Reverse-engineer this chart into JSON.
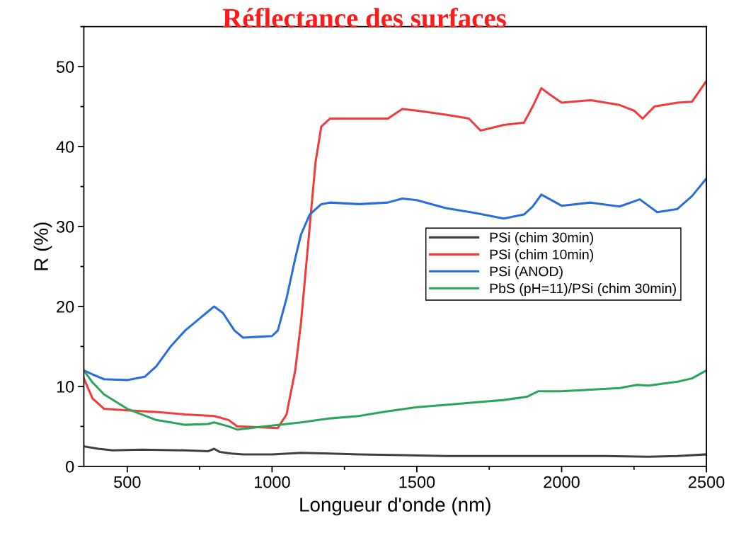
{
  "chart_data": {
    "type": "line",
    "title": "Réflectance des surfaces",
    "xlabel": "Longueur d'onde (nm)",
    "ylabel": "R (%)",
    "xlim": [
      350,
      2500
    ],
    "xticks": [
      500,
      1000,
      1500,
      2000,
      2500
    ],
    "ylim": [
      0,
      55
    ],
    "yticks": [
      0,
      10,
      20,
      30,
      40,
      50
    ],
    "grid": false,
    "legend": "right",
    "line_style": "solid",
    "marker": "none",
    "series": [
      {
        "name": "PSi (chim 30min)",
        "color": "#404040",
        "x": [
          350,
          400,
          450,
          550,
          700,
          780,
          800,
          820,
          860,
          900,
          1000,
          1100,
          1200,
          1300,
          1450,
          1600,
          1800,
          2000,
          2150,
          2300,
          2400,
          2500
        ],
        "values": [
          2.5,
          2.2,
          2.0,
          2.1,
          2.0,
          1.9,
          2.2,
          1.8,
          1.6,
          1.5,
          1.5,
          1.7,
          1.6,
          1.5,
          1.4,
          1.3,
          1.3,
          1.3,
          1.3,
          1.2,
          1.3,
          1.5
        ]
      },
      {
        "name": "PSi (chim 10min)",
        "color": "#f03c3c",
        "x": [
          350,
          380,
          420,
          500,
          600,
          700,
          800,
          850,
          880,
          950,
          1020,
          1050,
          1080,
          1100,
          1130,
          1150,
          1170,
          1200,
          1300,
          1400,
          1450,
          1500,
          1600,
          1680,
          1720,
          1800,
          1870,
          1900,
          1930,
          1960,
          2000,
          2100,
          2200,
          2250,
          2280,
          2320,
          2400,
          2450,
          2500
        ],
        "values": [
          11.0,
          8.5,
          7.2,
          7.0,
          6.8,
          6.5,
          6.3,
          5.8,
          5.0,
          4.9,
          4.8,
          6.5,
          12.0,
          18.0,
          30.0,
          38.0,
          42.5,
          43.5,
          43.5,
          43.5,
          44.7,
          44.5,
          44.0,
          43.5,
          42.0,
          42.7,
          43.0,
          45.0,
          47.3,
          46.5,
          45.5,
          45.8,
          45.2,
          44.5,
          43.5,
          45.0,
          45.5,
          45.6,
          48.2
        ]
      },
      {
        "name": "PSi (ANOD)",
        "color": "#2a6edc",
        "x": [
          350,
          380,
          420,
          500,
          560,
          600,
          650,
          700,
          750,
          800,
          830,
          870,
          900,
          950,
          1000,
          1020,
          1050,
          1080,
          1100,
          1130,
          1170,
          1200,
          1300,
          1400,
          1450,
          1500,
          1600,
          1700,
          1800,
          1870,
          1900,
          1930,
          1970,
          2000,
          2100,
          2200,
          2270,
          2330,
          2400,
          2450,
          2500
        ],
        "values": [
          12.0,
          11.5,
          10.9,
          10.8,
          11.2,
          12.5,
          15.0,
          17.0,
          18.5,
          20.0,
          19.2,
          17.0,
          16.1,
          16.2,
          16.3,
          17.0,
          21.0,
          26.0,
          29.0,
          31.5,
          32.8,
          33.0,
          32.8,
          33.0,
          33.5,
          33.3,
          32.3,
          31.7,
          31.0,
          31.5,
          32.5,
          34.0,
          33.2,
          32.6,
          33.0,
          32.5,
          33.4,
          31.8,
          32.2,
          33.8,
          36.0
        ]
      },
      {
        "name": "PbS (pH=11)/PSi (chim 30min)",
        "color": "#2aa55a",
        "x": [
          350,
          380,
          420,
          500,
          600,
          700,
          780,
          800,
          850,
          880,
          950,
          1000,
          1100,
          1200,
          1300,
          1400,
          1500,
          1600,
          1700,
          1800,
          1880,
          1920,
          2000,
          2100,
          2200,
          2260,
          2300,
          2400,
          2450,
          2500
        ],
        "values": [
          12.0,
          10.5,
          9.0,
          7.2,
          5.8,
          5.2,
          5.3,
          5.5,
          5.0,
          4.6,
          4.9,
          5.1,
          5.5,
          6.0,
          6.3,
          6.9,
          7.4,
          7.7,
          8.0,
          8.3,
          8.7,
          9.4,
          9.4,
          9.6,
          9.8,
          10.2,
          10.1,
          10.6,
          11.0,
          12.0
        ]
      }
    ]
  }
}
